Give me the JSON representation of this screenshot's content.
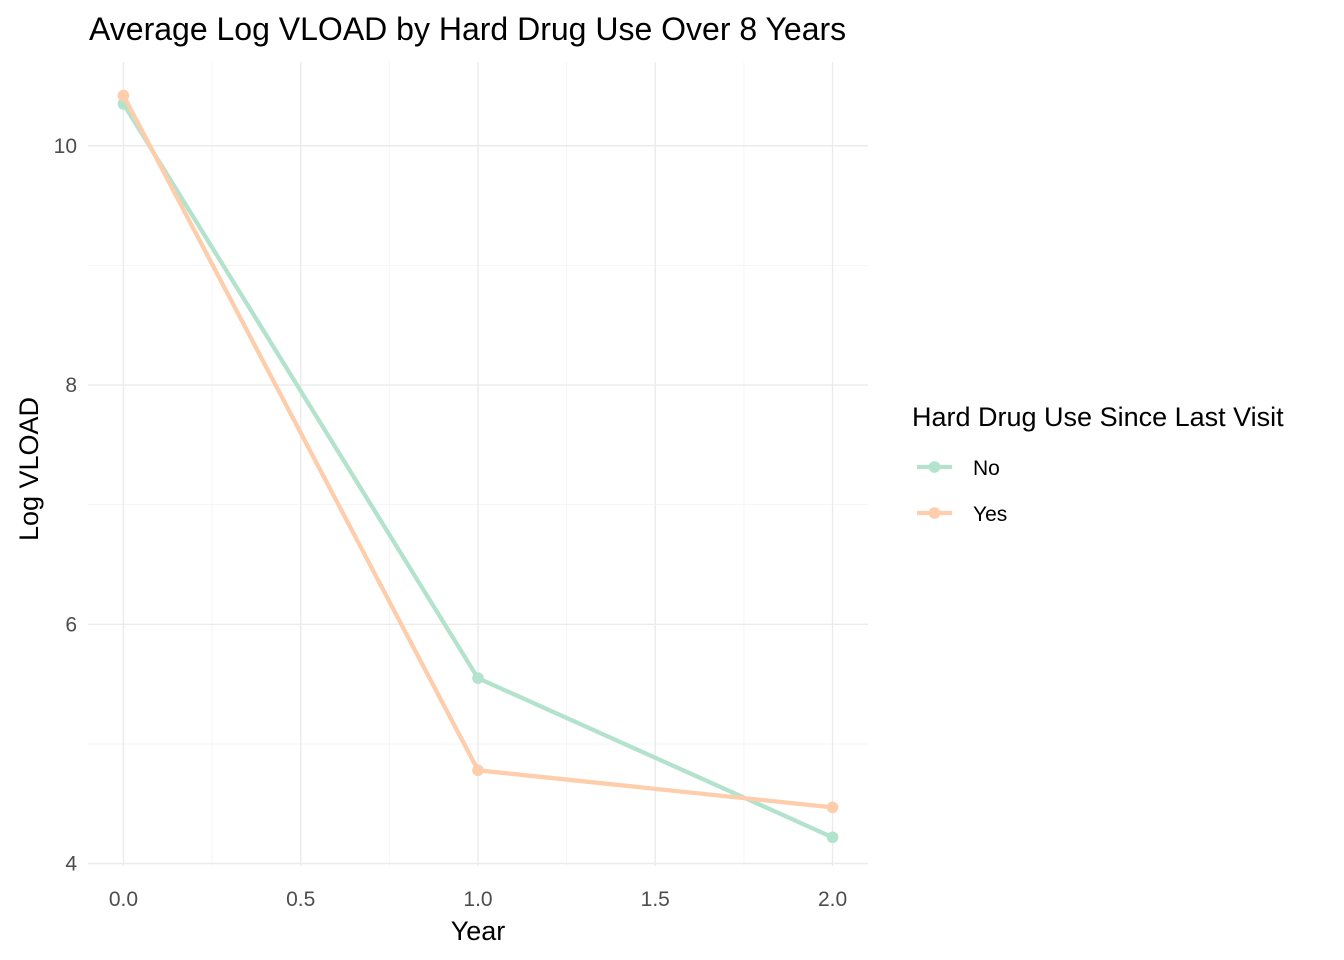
{
  "chart_data": {
    "type": "line",
    "title": "Average Log VLOAD by Hard Drug Use Over 8 Years",
    "xlabel": "Year",
    "ylabel": "Log VLOAD",
    "x": [
      0,
      1,
      2
    ],
    "xlim": [
      -0.1,
      2.1
    ],
    "ylim": [
      3.98,
      10.7
    ],
    "x_ticks": [
      0,
      0.5,
      1,
      1.5,
      2
    ],
    "x_tick_labels": [
      "0.0",
      "0.5",
      "1.0",
      "1.5",
      "2.0"
    ],
    "y_ticks": [
      4,
      6,
      8,
      10
    ],
    "y_tick_labels": [
      "4",
      "6",
      "8",
      "10"
    ],
    "grid": true,
    "legend_title": "Hard Drug Use Since Last Visit",
    "legend_placement": "right",
    "series": [
      {
        "name": "No",
        "color": "#b3e2cd",
        "values": [
          10.35,
          5.55,
          4.22
        ]
      },
      {
        "name": "Yes",
        "color": "#fdcdac",
        "values": [
          10.42,
          4.78,
          4.47
        ]
      }
    ]
  }
}
